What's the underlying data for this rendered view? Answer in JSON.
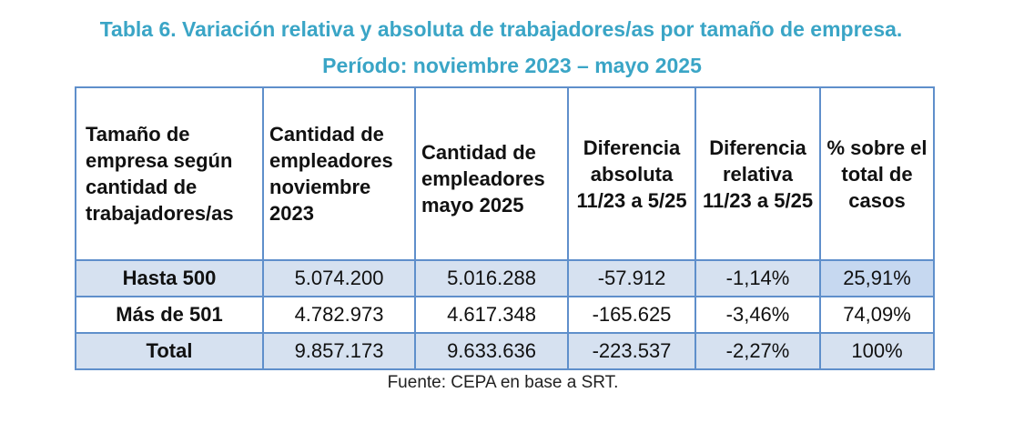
{
  "title": {
    "line1": "Tabla 6. Variación relativa y absoluta de trabajadores/as por tamaño de empresa.",
    "line2": "Período: noviembre 2023 – mayo 2025"
  },
  "table": {
    "headers": [
      "Tamaño de empresa según cantidad de trabajadores/as",
      "Cantidad de empleadores noviembre 2023",
      "Cantidad de empleadores mayo 2025",
      "Diferencia absoluta 11/23 a 5/25",
      "Diferencia relativa 11/23 a 5/25",
      "% sobre el total de casos"
    ],
    "rows": [
      [
        "Hasta 500",
        "5.074.200",
        "5.016.288",
        "-57.912",
        "-1,14%",
        "25,91%"
      ],
      [
        "Más de 501",
        "4.782.973",
        "4.617.348",
        "-165.625",
        "-3,46%",
        "74,09%"
      ],
      [
        "Total",
        "9.857.173",
        "9.633.636",
        "-223.537",
        "-2,27%",
        "100%"
      ]
    ]
  },
  "footer": "Fuente: CEPA en base a SRT.",
  "colors": {
    "title": "#3aa5c6",
    "border": "#5f8fcb",
    "shade": "#d6e1f0",
    "highlight": "#c6d8f0"
  }
}
